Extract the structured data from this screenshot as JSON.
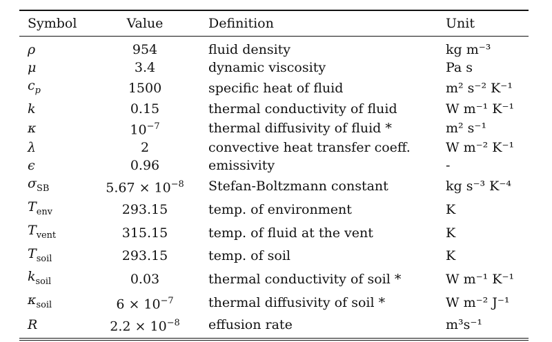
{
  "table": {
    "headers": {
      "symbol": "Symbol",
      "value": "Value",
      "definition": "Definition",
      "unit": "Unit"
    },
    "rows": [
      {
        "symbol": "ρ",
        "symbol_sub": "",
        "value": "954",
        "value_sup": "",
        "value_tail": "",
        "definition": "fluid density",
        "unit": "kg m⁻³"
      },
      {
        "symbol": "μ",
        "symbol_sub": "",
        "value": "3.4",
        "value_sup": "",
        "value_tail": "",
        "definition": "dynamic viscosity",
        "unit": "Pa s"
      },
      {
        "symbol": "c",
        "symbol_sub": "p",
        "value": "1500",
        "value_sup": "",
        "value_tail": "",
        "definition": "specific heat of fluid",
        "unit": "m² s⁻² K⁻¹"
      },
      {
        "symbol": "k",
        "symbol_sub": "",
        "value": "0.15",
        "value_sup": "",
        "value_tail": "",
        "definition": "thermal conductivity of fluid",
        "unit": "W m⁻¹ K⁻¹"
      },
      {
        "symbol": "κ",
        "symbol_sub": "",
        "value": "10",
        "value_sup": "−7",
        "value_tail": "",
        "definition": "thermal diffusivity of fluid *",
        "unit": "m² s⁻¹"
      },
      {
        "symbol": "λ",
        "symbol_sub": "",
        "value": "2",
        "value_sup": "",
        "value_tail": "",
        "definition": "convective heat transfer coeff.",
        "unit": "W m⁻² K⁻¹"
      },
      {
        "symbol": "ϵ",
        "symbol_sub": "",
        "value": "0.96",
        "value_sup": "",
        "value_tail": "",
        "definition": "emissivity",
        "unit": "-"
      },
      {
        "symbol": "σ",
        "symbol_sub": "SB",
        "value": "5.67 × 10",
        "value_sup": "−8",
        "value_tail": "",
        "definition": "Stefan-Boltzmann constant",
        "unit": "kg s⁻³ K⁻⁴"
      },
      {
        "symbol": "T",
        "symbol_sub": "env",
        "value": "293.15",
        "value_sup": "",
        "value_tail": "",
        "definition": "temp. of environment",
        "unit": "K"
      },
      {
        "symbol": "T",
        "symbol_sub": "vent",
        "value": "315.15",
        "value_sup": "",
        "value_tail": "",
        "definition": "temp. of fluid at the vent",
        "unit": "K"
      },
      {
        "symbol": "T",
        "symbol_sub": "soil",
        "value": "293.15",
        "value_sup": "",
        "value_tail": "",
        "definition": "temp. of soil",
        "unit": "K"
      },
      {
        "symbol": "k",
        "symbol_sub": "soil",
        "value": "0.03",
        "value_sup": "",
        "value_tail": "",
        "definition": "thermal conductivity of soil *",
        "unit": "W m⁻¹ K⁻¹"
      },
      {
        "symbol": "κ",
        "symbol_sub": "soil",
        "value": "6 × 10",
        "value_sup": "−7",
        "value_tail": "",
        "definition": "thermal diffusivity of soil *",
        "unit": "W m⁻² J⁻¹"
      },
      {
        "symbol": "R",
        "symbol_sub": "",
        "value": "2.2 × 10",
        "value_sup": "−8",
        "value_tail": "",
        "definition": "effusion rate",
        "unit": "m³s⁻¹"
      }
    ]
  }
}
